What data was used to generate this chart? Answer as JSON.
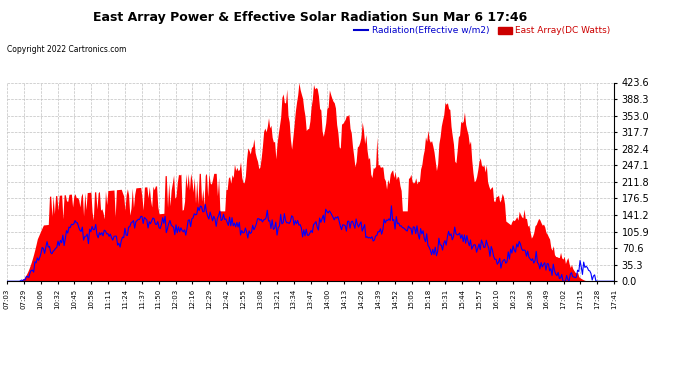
{
  "title": "East Array Power & Effective Solar Radiation Sun Mar 6 17:46",
  "copyright": "Copyright 2022 Cartronics.com",
  "legend_radiation": "Radiation(Effective w/m2)",
  "legend_east": "East Array(DC Watts)",
  "y_max": 423.6,
  "y_min": 0.0,
  "y_ticks": [
    0.0,
    35.3,
    70.6,
    105.9,
    141.2,
    176.5,
    211.8,
    247.1,
    282.4,
    317.7,
    353.0,
    388.3,
    423.6
  ],
  "x_labels": [
    "07:03",
    "07:29",
    "10:06",
    "10:32",
    "10:45",
    "10:58",
    "11:11",
    "11:24",
    "11:37",
    "11:50",
    "12:03",
    "12:16",
    "12:29",
    "12:42",
    "12:55",
    "13:08",
    "13:21",
    "13:34",
    "13:47",
    "14:00",
    "14:13",
    "14:26",
    "14:39",
    "14:52",
    "15:05",
    "15:18",
    "15:31",
    "15:44",
    "15:57",
    "16:10",
    "16:23",
    "16:36",
    "16:49",
    "17:02",
    "17:15",
    "17:28",
    "17:41"
  ],
  "bg_color": "#ffffff",
  "grid_color": "#c0c0c0",
  "red_color": "#ff0000",
  "blue_color": "#0000ff",
  "title_color": "#000000",
  "copyright_color": "#000000",
  "radiation_legend_color": "#0000cc",
  "east_legend_color": "#cc0000"
}
